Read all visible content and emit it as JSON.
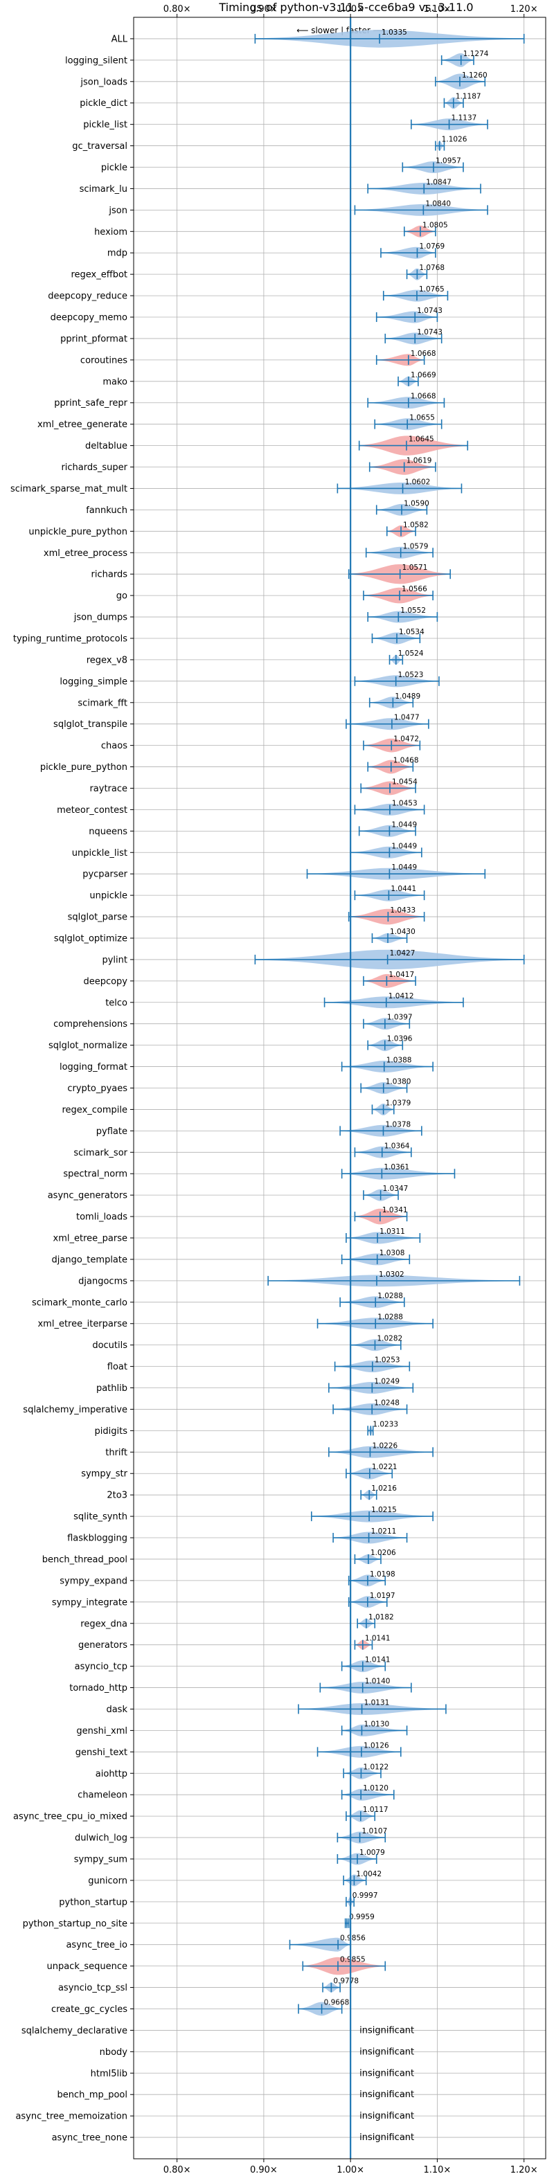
{
  "chart_data": {
    "type": "violin",
    "title": "Timings of python-v3.11.5-cce6ba9 vs. 3.11.0",
    "direction_note": "⟵ slower | faster ⟶",
    "xlim": [
      0.75,
      1.225
    ],
    "x_ticks": [
      0.8,
      0.9,
      1.0,
      1.1,
      1.2
    ],
    "x_tick_labels": [
      "0.80×",
      "0.90×",
      "1.00×",
      "1.10×",
      "1.20×"
    ],
    "grid": true,
    "reference_line": 1.0,
    "colors": {
      "faster": "#a9c8e8",
      "slower": "#f4a9a9",
      "line": "#1f77b4",
      "grid": "#b0b0b0"
    },
    "insignificant_text": "insignificant",
    "benchmarks": [
      {
        "name": "ALL",
        "value": 1.0335,
        "label": "1.0335",
        "lo": 0.89,
        "hi": 1.2,
        "w": 0.9,
        "slower": false
      },
      {
        "name": "logging_silent",
        "value": 1.1274,
        "label": "1.1274",
        "lo": 1.105,
        "hi": 1.142,
        "w": 0.7,
        "slower": false
      },
      {
        "name": "json_loads",
        "value": 1.126,
        "label": "1.1260",
        "lo": 1.098,
        "hi": 1.155,
        "w": 0.8,
        "slower": false
      },
      {
        "name": "pickle_dict",
        "value": 1.1187,
        "label": "1.1187",
        "lo": 1.108,
        "hi": 1.13,
        "w": 0.6,
        "slower": false
      },
      {
        "name": "pickle_list",
        "value": 1.1137,
        "label": "1.1137",
        "lo": 1.07,
        "hi": 1.158,
        "w": 0.6,
        "slower": false
      },
      {
        "name": "gc_traversal",
        "value": 1.1026,
        "label": "1.1026",
        "lo": 1.098,
        "hi": 1.108,
        "w": 0.5,
        "slower": false
      },
      {
        "name": "pickle",
        "value": 1.0957,
        "label": "1.0957",
        "lo": 1.06,
        "hi": 1.13,
        "w": 0.6,
        "slower": false
      },
      {
        "name": "scimark_lu",
        "value": 1.0847,
        "label": "1.0847",
        "lo": 1.02,
        "hi": 1.15,
        "w": 0.6,
        "slower": false
      },
      {
        "name": "json",
        "value": 1.084,
        "label": "1.0840",
        "lo": 1.005,
        "hi": 1.158,
        "w": 0.6,
        "slower": false
      },
      {
        "name": "hexiom",
        "value": 1.0805,
        "label": "1.0805",
        "lo": 1.062,
        "hi": 1.098,
        "w": 0.6,
        "slower": true
      },
      {
        "name": "mdp",
        "value": 1.0769,
        "label": "1.0769",
        "lo": 1.035,
        "hi": 1.098,
        "w": 0.6,
        "slower": false
      },
      {
        "name": "regex_effbot",
        "value": 1.0768,
        "label": "1.0768",
        "lo": 1.065,
        "hi": 1.088,
        "w": 0.6,
        "slower": false
      },
      {
        "name": "deepcopy_reduce",
        "value": 1.0765,
        "label": "1.0765",
        "lo": 1.038,
        "hi": 1.112,
        "w": 0.6,
        "slower": false
      },
      {
        "name": "deepcopy_memo",
        "value": 1.0743,
        "label": "1.0743",
        "lo": 1.03,
        "hi": 1.1,
        "w": 0.6,
        "slower": false
      },
      {
        "name": "pprint_pformat",
        "value": 1.0743,
        "label": "1.0743",
        "lo": 1.04,
        "hi": 1.105,
        "w": 0.6,
        "slower": false
      },
      {
        "name": "coroutines",
        "value": 1.0668,
        "label": "1.0668",
        "lo": 1.03,
        "hi": 1.085,
        "w": 0.6,
        "slower": true
      },
      {
        "name": "mako",
        "value": 1.0669,
        "label": "1.0669",
        "lo": 1.055,
        "hi": 1.078,
        "w": 0.5,
        "slower": false
      },
      {
        "name": "pprint_safe_repr",
        "value": 1.0668,
        "label": "1.0668",
        "lo": 1.02,
        "hi": 1.108,
        "w": 0.6,
        "slower": false
      },
      {
        "name": "xml_etree_generate",
        "value": 1.0655,
        "label": "1.0655",
        "lo": 1.028,
        "hi": 1.105,
        "w": 0.6,
        "slower": false
      },
      {
        "name": "deltablue",
        "value": 1.0645,
        "label": "1.0645",
        "lo": 1.01,
        "hi": 1.135,
        "w": 1.0,
        "slower": true
      },
      {
        "name": "richards_super",
        "value": 1.0619,
        "label": "1.0619",
        "lo": 1.022,
        "hi": 1.098,
        "w": 0.8,
        "slower": true
      },
      {
        "name": "scimark_sparse_mat_mult",
        "value": 1.0602,
        "label": "1.0602",
        "lo": 0.985,
        "hi": 1.128,
        "w": 0.6,
        "slower": false
      },
      {
        "name": "fannkuch",
        "value": 1.059,
        "label": "1.0590",
        "lo": 1.03,
        "hi": 1.088,
        "w": 0.6,
        "slower": false
      },
      {
        "name": "unpickle_pure_python",
        "value": 1.0582,
        "label": "1.0582",
        "lo": 1.042,
        "hi": 1.075,
        "w": 0.6,
        "slower": true
      },
      {
        "name": "xml_etree_process",
        "value": 1.0579,
        "label": "1.0579",
        "lo": 1.018,
        "hi": 1.095,
        "w": 0.6,
        "slower": false
      },
      {
        "name": "richards",
        "value": 1.0571,
        "label": "1.0571",
        "lo": 0.998,
        "hi": 1.115,
        "w": 1.0,
        "slower": true
      },
      {
        "name": "go",
        "value": 1.0566,
        "label": "1.0566",
        "lo": 1.015,
        "hi": 1.095,
        "w": 0.8,
        "slower": true
      },
      {
        "name": "json_dumps",
        "value": 1.0552,
        "label": "1.0552",
        "lo": 1.02,
        "hi": 1.1,
        "w": 0.6,
        "slower": false
      },
      {
        "name": "typing_runtime_protocols",
        "value": 1.0534,
        "label": "1.0534",
        "lo": 1.025,
        "hi": 1.08,
        "w": 0.6,
        "slower": false
      },
      {
        "name": "regex_v8",
        "value": 1.0524,
        "label": "1.0524",
        "lo": 1.045,
        "hi": 1.06,
        "w": 0.5,
        "slower": false
      },
      {
        "name": "logging_simple",
        "value": 1.0523,
        "label": "1.0523",
        "lo": 1.005,
        "hi": 1.102,
        "w": 0.6,
        "slower": false
      },
      {
        "name": "scimark_fft",
        "value": 1.0489,
        "label": "1.0489",
        "lo": 1.022,
        "hi": 1.072,
        "w": 0.6,
        "slower": false
      },
      {
        "name": "sqlglot_transpile",
        "value": 1.0477,
        "label": "1.0477",
        "lo": 0.995,
        "hi": 1.09,
        "w": 0.6,
        "slower": false
      },
      {
        "name": "chaos",
        "value": 1.0472,
        "label": "1.0472",
        "lo": 1.015,
        "hi": 1.08,
        "w": 0.7,
        "slower": true
      },
      {
        "name": "pickle_pure_python",
        "value": 1.0468,
        "label": "1.0468",
        "lo": 1.02,
        "hi": 1.072,
        "w": 0.7,
        "slower": true
      },
      {
        "name": "raytrace",
        "value": 1.0454,
        "label": "1.0454",
        "lo": 1.012,
        "hi": 1.075,
        "w": 0.7,
        "slower": true
      },
      {
        "name": "meteor_contest",
        "value": 1.0453,
        "label": "1.0453",
        "lo": 1.005,
        "hi": 1.085,
        "w": 0.6,
        "slower": false
      },
      {
        "name": "nqueens",
        "value": 1.0449,
        "label": "1.0449",
        "lo": 1.01,
        "hi": 1.075,
        "w": 0.6,
        "slower": false
      },
      {
        "name": "unpickle_list",
        "value": 1.0449,
        "label": "1.0449",
        "lo": 1.0,
        "hi": 1.082,
        "w": 0.6,
        "slower": false
      },
      {
        "name": "pycparser",
        "value": 1.0449,
        "label": "1.0449",
        "lo": 0.95,
        "hi": 1.155,
        "w": 0.6,
        "slower": false
      },
      {
        "name": "unpickle",
        "value": 1.0441,
        "label": "1.0441",
        "lo": 1.005,
        "hi": 1.085,
        "w": 0.6,
        "slower": false
      },
      {
        "name": "sqlglot_parse",
        "value": 1.0433,
        "label": "1.0433",
        "lo": 0.998,
        "hi": 1.085,
        "w": 0.8,
        "slower": true
      },
      {
        "name": "sqlglot_optimize",
        "value": 1.043,
        "label": "1.0430",
        "lo": 1.025,
        "hi": 1.065,
        "w": 0.5,
        "slower": false
      },
      {
        "name": "pylint",
        "value": 1.0427,
        "label": "1.0427",
        "lo": 0.89,
        "hi": 1.2,
        "w": 1.0,
        "slower": false
      },
      {
        "name": "deepcopy",
        "value": 1.0417,
        "label": "1.0417",
        "lo": 1.015,
        "hi": 1.075,
        "w": 0.7,
        "slower": true
      },
      {
        "name": "telco",
        "value": 1.0412,
        "label": "1.0412",
        "lo": 0.97,
        "hi": 1.13,
        "w": 0.6,
        "slower": false
      },
      {
        "name": "comprehensions",
        "value": 1.0397,
        "label": "1.0397",
        "lo": 1.015,
        "hi": 1.068,
        "w": 0.6,
        "slower": false
      },
      {
        "name": "sqlglot_normalize",
        "value": 1.0396,
        "label": "1.0396",
        "lo": 1.02,
        "hi": 1.06,
        "w": 0.6,
        "slower": false
      },
      {
        "name": "logging_format",
        "value": 1.0388,
        "label": "1.0388",
        "lo": 0.99,
        "hi": 1.095,
        "w": 0.6,
        "slower": false
      },
      {
        "name": "crypto_pyaes",
        "value": 1.038,
        "label": "1.0380",
        "lo": 1.012,
        "hi": 1.065,
        "w": 0.6,
        "slower": false
      },
      {
        "name": "regex_compile",
        "value": 1.0379,
        "label": "1.0379",
        "lo": 1.025,
        "hi": 1.05,
        "w": 0.6,
        "slower": false
      },
      {
        "name": "pyflate",
        "value": 1.0378,
        "label": "1.0378",
        "lo": 0.988,
        "hi": 1.082,
        "w": 0.6,
        "slower": false
      },
      {
        "name": "scimark_sor",
        "value": 1.0364,
        "label": "1.0364",
        "lo": 1.005,
        "hi": 1.07,
        "w": 0.6,
        "slower": false
      },
      {
        "name": "spectral_norm",
        "value": 1.0361,
        "label": "1.0361",
        "lo": 0.99,
        "hi": 1.12,
        "w": 0.6,
        "slower": false
      },
      {
        "name": "async_generators",
        "value": 1.0347,
        "label": "1.0347",
        "lo": 1.015,
        "hi": 1.055,
        "w": 0.6,
        "slower": false
      },
      {
        "name": "tomli_loads",
        "value": 1.0341,
        "label": "1.0341",
        "lo": 1.005,
        "hi": 1.065,
        "w": 0.8,
        "slower": true
      },
      {
        "name": "xml_etree_parse",
        "value": 1.0311,
        "label": "1.0311",
        "lo": 0.995,
        "hi": 1.08,
        "w": 0.6,
        "slower": false
      },
      {
        "name": "django_template",
        "value": 1.0308,
        "label": "1.0308",
        "lo": 0.99,
        "hi": 1.068,
        "w": 0.6,
        "slower": false
      },
      {
        "name": "djangocms",
        "value": 1.0302,
        "label": "1.0302",
        "lo": 0.905,
        "hi": 1.195,
        "w": 0.6,
        "slower": false
      },
      {
        "name": "scimark_monte_carlo",
        "value": 1.0288,
        "label": "1.0288",
        "lo": 0.988,
        "hi": 1.062,
        "w": 0.6,
        "slower": false
      },
      {
        "name": "xml_etree_iterparse",
        "value": 1.0288,
        "label": "1.0288",
        "lo": 0.962,
        "hi": 1.095,
        "w": 0.6,
        "slower": false
      },
      {
        "name": "docutils",
        "value": 1.0282,
        "label": "1.0282",
        "lo": 1.0,
        "hi": 1.058,
        "w": 0.6,
        "slower": false
      },
      {
        "name": "float",
        "value": 1.0253,
        "label": "1.0253",
        "lo": 0.982,
        "hi": 1.068,
        "w": 0.6,
        "slower": false
      },
      {
        "name": "pathlib",
        "value": 1.0249,
        "label": "1.0249",
        "lo": 0.975,
        "hi": 1.072,
        "w": 0.6,
        "slower": false
      },
      {
        "name": "sqlalchemy_imperative",
        "value": 1.0248,
        "label": "1.0248",
        "lo": 0.98,
        "hi": 1.065,
        "w": 0.6,
        "slower": false
      },
      {
        "name": "pidigits",
        "value": 1.0233,
        "label": "1.0233",
        "lo": 1.02,
        "hi": 1.026,
        "w": 0.5,
        "slower": false
      },
      {
        "name": "thrift",
        "value": 1.0226,
        "label": "1.0226",
        "lo": 0.975,
        "hi": 1.095,
        "w": 0.6,
        "slower": false
      },
      {
        "name": "sympy_str",
        "value": 1.0221,
        "label": "1.0221",
        "lo": 0.995,
        "hi": 1.048,
        "w": 0.6,
        "slower": false
      },
      {
        "name": "2to3",
        "value": 1.0216,
        "label": "1.0216",
        "lo": 1.012,
        "hi": 1.03,
        "w": 0.5,
        "slower": false
      },
      {
        "name": "sqlite_synth",
        "value": 1.0215,
        "label": "1.0215",
        "lo": 0.955,
        "hi": 1.095,
        "w": 0.6,
        "slower": false
      },
      {
        "name": "flaskblogging",
        "value": 1.0211,
        "label": "1.0211",
        "lo": 0.98,
        "hi": 1.065,
        "w": 0.6,
        "slower": false
      },
      {
        "name": "bench_thread_pool",
        "value": 1.0206,
        "label": "1.0206",
        "lo": 1.005,
        "hi": 1.035,
        "w": 0.5,
        "slower": false
      },
      {
        "name": "sympy_expand",
        "value": 1.0198,
        "label": "1.0198",
        "lo": 0.998,
        "hi": 1.04,
        "w": 0.6,
        "slower": false
      },
      {
        "name": "sympy_integrate",
        "value": 1.0197,
        "label": "1.0197",
        "lo": 0.998,
        "hi": 1.042,
        "w": 0.6,
        "slower": false
      },
      {
        "name": "regex_dna",
        "value": 1.0182,
        "label": "1.0182",
        "lo": 1.008,
        "hi": 1.028,
        "w": 0.5,
        "slower": false
      },
      {
        "name": "generators",
        "value": 1.0141,
        "label": "1.0141",
        "lo": 1.005,
        "hi": 1.025,
        "w": 0.5,
        "slower": true
      },
      {
        "name": "asyncio_tcp",
        "value": 1.0141,
        "label": "1.0141",
        "lo": 0.99,
        "hi": 1.04,
        "w": 0.6,
        "slower": false
      },
      {
        "name": "tornado_http",
        "value": 1.014,
        "label": "1.0140",
        "lo": 0.965,
        "hi": 1.07,
        "w": 0.6,
        "slower": false
      },
      {
        "name": "dask",
        "value": 1.0131,
        "label": "1.0131",
        "lo": 0.94,
        "hi": 1.11,
        "w": 0.6,
        "slower": false
      },
      {
        "name": "genshi_xml",
        "value": 1.013,
        "label": "1.0130",
        "lo": 0.99,
        "hi": 1.065,
        "w": 0.6,
        "slower": false
      },
      {
        "name": "genshi_text",
        "value": 1.0126,
        "label": "1.0126",
        "lo": 0.962,
        "hi": 1.058,
        "w": 0.6,
        "slower": false
      },
      {
        "name": "aiohttp",
        "value": 1.0122,
        "label": "1.0122",
        "lo": 0.992,
        "hi": 1.035,
        "w": 0.6,
        "slower": false
      },
      {
        "name": "chameleon",
        "value": 1.012,
        "label": "1.0120",
        "lo": 0.99,
        "hi": 1.05,
        "w": 0.6,
        "slower": false
      },
      {
        "name": "async_tree_cpu_io_mixed",
        "value": 1.0117,
        "label": "1.0117",
        "lo": 0.995,
        "hi": 1.028,
        "w": 0.6,
        "slower": false
      },
      {
        "name": "dulwich_log",
        "value": 1.0107,
        "label": "1.0107",
        "lo": 0.985,
        "hi": 1.04,
        "w": 0.6,
        "slower": false
      },
      {
        "name": "sympy_sum",
        "value": 1.0079,
        "label": "1.0079",
        "lo": 0.985,
        "hi": 1.03,
        "w": 0.6,
        "slower": false
      },
      {
        "name": "gunicorn",
        "value": 1.0042,
        "label": "1.0042",
        "lo": 0.992,
        "hi": 1.018,
        "w": 0.6,
        "slower": false
      },
      {
        "name": "python_startup",
        "value": 0.9997,
        "label": "0.9997",
        "lo": 0.995,
        "hi": 1.004,
        "w": 0.5,
        "slower": false
      },
      {
        "name": "python_startup_no_site",
        "value": 0.9959,
        "label": "0.9959",
        "lo": 0.994,
        "hi": 0.998,
        "w": 0.5,
        "slower": false
      },
      {
        "name": "async_tree_io",
        "value": 0.9856,
        "label": "0.9856",
        "lo": 0.93,
        "hi": 1.0,
        "w": 0.7,
        "slower": false
      },
      {
        "name": "unpack_sequence",
        "value": 0.9855,
        "label": "0.9855",
        "lo": 0.945,
        "hi": 1.04,
        "w": 0.9,
        "slower": true
      },
      {
        "name": "asyncio_tcp_ssl",
        "value": 0.9778,
        "label": "0.9778",
        "lo": 0.968,
        "hi": 0.988,
        "w": 0.5,
        "slower": false
      },
      {
        "name": "create_gc_cycles",
        "value": 0.9668,
        "label": "0.9668",
        "lo": 0.94,
        "hi": 0.99,
        "w": 0.7,
        "slower": false
      },
      {
        "name": "sqlalchemy_declarative",
        "insignificant": true
      },
      {
        "name": "nbody",
        "insignificant": true
      },
      {
        "name": "html5lib",
        "insignificant": true
      },
      {
        "name": "bench_mp_pool",
        "insignificant": true
      },
      {
        "name": "async_tree_memoization",
        "insignificant": true
      },
      {
        "name": "async_tree_none",
        "insignificant": true
      }
    ]
  }
}
